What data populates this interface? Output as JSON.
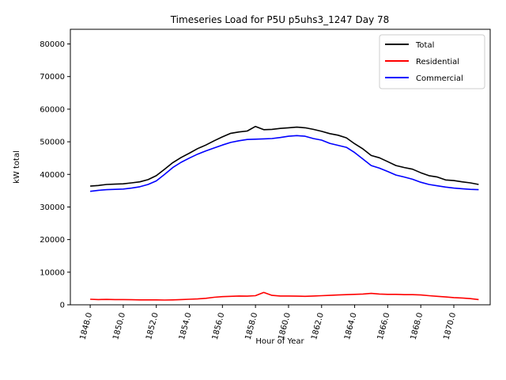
{
  "chart_data": {
    "type": "line",
    "title": "Timeseries Load for P5U p5uhs3_1247  Day 78",
    "xlabel": "Hour of Year",
    "ylabel": "kW total",
    "xlim": [
      1846.8,
      1872.2
    ],
    "ylim": [
      0,
      84500
    ],
    "x_ticks": [
      1848,
      1850,
      1852,
      1854,
      1856,
      1858,
      1860,
      1862,
      1864,
      1866,
      1868,
      1870
    ],
    "x_tick_labels": [
      "1848.0",
      "1850.0",
      "1852.0",
      "1854.0",
      "1856.0",
      "1858.0",
      "1860.0",
      "1862.0",
      "1864.0",
      "1866.0",
      "1868.0",
      "1870.0"
    ],
    "y_ticks": [
      0,
      10000,
      20000,
      30000,
      40000,
      50000,
      60000,
      70000,
      80000
    ],
    "y_tick_labels": [
      "0",
      "10000",
      "20000",
      "30000",
      "40000",
      "50000",
      "60000",
      "70000",
      "80000"
    ],
    "legend_position": "top-right",
    "grid": false,
    "series": [
      {
        "name": "Total",
        "color": "#000000",
        "x": [
          1848.0,
          1848.5,
          1849.0,
          1849.5,
          1850.0,
          1850.5,
          1851.0,
          1851.5,
          1852.0,
          1852.5,
          1853.0,
          1853.5,
          1854.0,
          1854.5,
          1855.0,
          1855.5,
          1856.0,
          1856.5,
          1857.0,
          1857.5,
          1858.0,
          1858.5,
          1859.0,
          1859.5,
          1860.0,
          1860.5,
          1861.0,
          1861.5,
          1862.0,
          1862.5,
          1863.0,
          1863.5,
          1864.0,
          1864.5,
          1865.0,
          1865.5,
          1866.0,
          1866.5,
          1867.0,
          1867.5,
          1868.0,
          1868.5,
          1869.0,
          1869.5,
          1870.0,
          1870.5,
          1871.0,
          1871.5
        ],
        "values": [
          36400,
          36600,
          36900,
          37000,
          37100,
          37400,
          37700,
          38400,
          39600,
          41600,
          43600,
          45200,
          46500,
          47900,
          49000,
          50300,
          51500,
          52600,
          53000,
          53300,
          54700,
          53700,
          53800,
          54100,
          54300,
          54500,
          54300,
          53800,
          53200,
          52500,
          52000,
          51200,
          49400,
          47800,
          45800,
          45100,
          43900,
          42700,
          42100,
          41600,
          40500,
          39600,
          39200,
          38300,
          38100,
          37700,
          37400,
          36900
        ]
      },
      {
        "name": "Residential",
        "color": "#ff0000",
        "x": [
          1848.0,
          1848.5,
          1849.0,
          1849.5,
          1850.0,
          1850.5,
          1851.0,
          1851.5,
          1852.0,
          1852.5,
          1853.0,
          1853.5,
          1854.0,
          1854.5,
          1855.0,
          1855.5,
          1856.0,
          1856.5,
          1857.0,
          1857.5,
          1858.0,
          1858.5,
          1859.0,
          1859.5,
          1860.0,
          1860.5,
          1861.0,
          1861.5,
          1862.0,
          1862.5,
          1863.0,
          1863.5,
          1864.0,
          1864.5,
          1865.0,
          1865.5,
          1866.0,
          1866.5,
          1867.0,
          1867.5,
          1868.0,
          1868.5,
          1869.0,
          1869.5,
          1870.0,
          1870.5,
          1871.0,
          1871.5
        ],
        "values": [
          1700,
          1600,
          1650,
          1600,
          1600,
          1550,
          1500,
          1500,
          1500,
          1450,
          1500,
          1600,
          1700,
          1800,
          2000,
          2300,
          2500,
          2600,
          2700,
          2650,
          2800,
          3800,
          2900,
          2700,
          2700,
          2650,
          2600,
          2700,
          2800,
          2900,
          3000,
          3100,
          3200,
          3300,
          3500,
          3300,
          3200,
          3200,
          3100,
          3100,
          3000,
          2800,
          2600,
          2400,
          2200,
          2100,
          1900,
          1600
        ]
      },
      {
        "name": "Commercial",
        "color": "#0000ff",
        "x": [
          1848.0,
          1848.5,
          1849.0,
          1849.5,
          1850.0,
          1850.5,
          1851.0,
          1851.5,
          1852.0,
          1852.5,
          1853.0,
          1853.5,
          1854.0,
          1854.5,
          1855.0,
          1855.5,
          1856.0,
          1856.5,
          1857.0,
          1857.5,
          1858.0,
          1858.5,
          1859.0,
          1859.5,
          1860.0,
          1860.5,
          1861.0,
          1861.5,
          1862.0,
          1862.5,
          1863.0,
          1863.5,
          1864.0,
          1864.5,
          1865.0,
          1865.5,
          1866.0,
          1866.5,
          1867.0,
          1867.5,
          1868.0,
          1868.5,
          1869.0,
          1869.5,
          1870.0,
          1870.5,
          1871.0,
          1871.5
        ],
        "values": [
          34800,
          35100,
          35300,
          35400,
          35500,
          35800,
          36200,
          36900,
          38000,
          40000,
          42100,
          43700,
          45000,
          46200,
          47200,
          48100,
          49000,
          49800,
          50300,
          50700,
          50800,
          50900,
          51000,
          51300,
          51700,
          51900,
          51700,
          51000,
          50500,
          49500,
          48900,
          48300,
          46700,
          44700,
          42700,
          41900,
          40900,
          39800,
          39200,
          38500,
          37600,
          36900,
          36500,
          36100,
          35800,
          35600,
          35400,
          35300
        ]
      }
    ]
  }
}
